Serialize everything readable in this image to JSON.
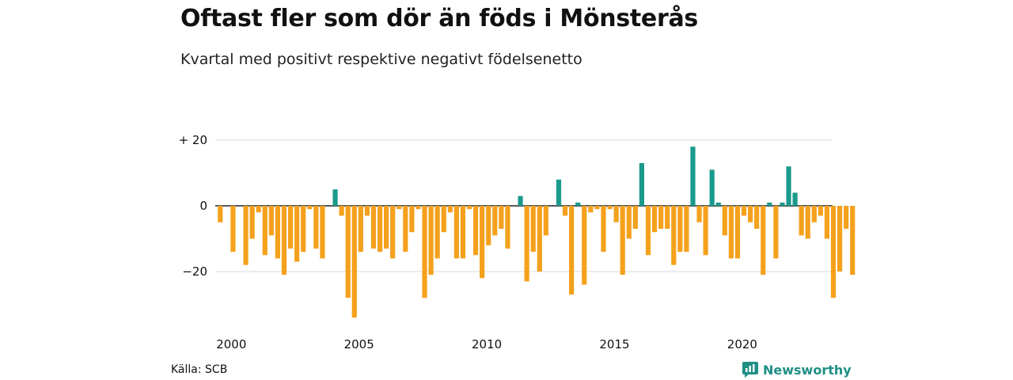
{
  "title": "Oftast fler som dör än föds i Mönsterås",
  "subtitle": "Kvartal med positivt respektive negativt födelsenetto",
  "source": "Källa: SCB",
  "brand": "Newsworthy",
  "colors": {
    "positive": "#1a9a8c",
    "negative": "#f5a11c",
    "grid": "#d9d9d9",
    "zero": "#222222"
  },
  "chart_data": {
    "type": "bar",
    "x_start": "2000 Q1",
    "values": [
      -5,
      0,
      -14,
      0,
      -18,
      -10,
      -2,
      -15,
      -9,
      -16,
      -21,
      -13,
      -17,
      -14,
      -1,
      -13,
      -16,
      0,
      5,
      -3,
      -28,
      -34,
      -14,
      -3,
      -13,
      -14,
      -13,
      -16,
      -1,
      -14,
      -8,
      -1,
      -28,
      -21,
      -16,
      -8,
      -2,
      -16,
      -16,
      -1,
      -15,
      -22,
      -12,
      -9,
      -7,
      -13,
      0,
      3,
      -23,
      -14,
      -20,
      -9,
      0,
      8,
      -3,
      -27,
      1,
      -24,
      -2,
      -1,
      -14,
      -1,
      -5,
      -21,
      -10,
      -7,
      13,
      -15,
      -8,
      -7,
      -7,
      -18,
      -14,
      -14,
      18,
      -5,
      -15,
      11,
      1,
      -9,
      -16,
      -16,
      -3,
      -5,
      -7,
      -21,
      1,
      -16,
      1,
      12,
      4,
      -9,
      -10,
      -5,
      -3,
      -10,
      -28,
      -20,
      -7,
      -21
    ],
    "x_ticks": [
      "2000",
      "2005",
      "2010",
      "2015",
      "2020"
    ],
    "y_ticks": [
      {
        "value": 20,
        "label": "+ 20"
      },
      {
        "value": 0,
        "label": "0"
      },
      {
        "value": -20,
        "label": "−20"
      }
    ],
    "ylim": [
      -36,
      22
    ],
    "grid": true,
    "xlabel": "",
    "ylabel": ""
  }
}
